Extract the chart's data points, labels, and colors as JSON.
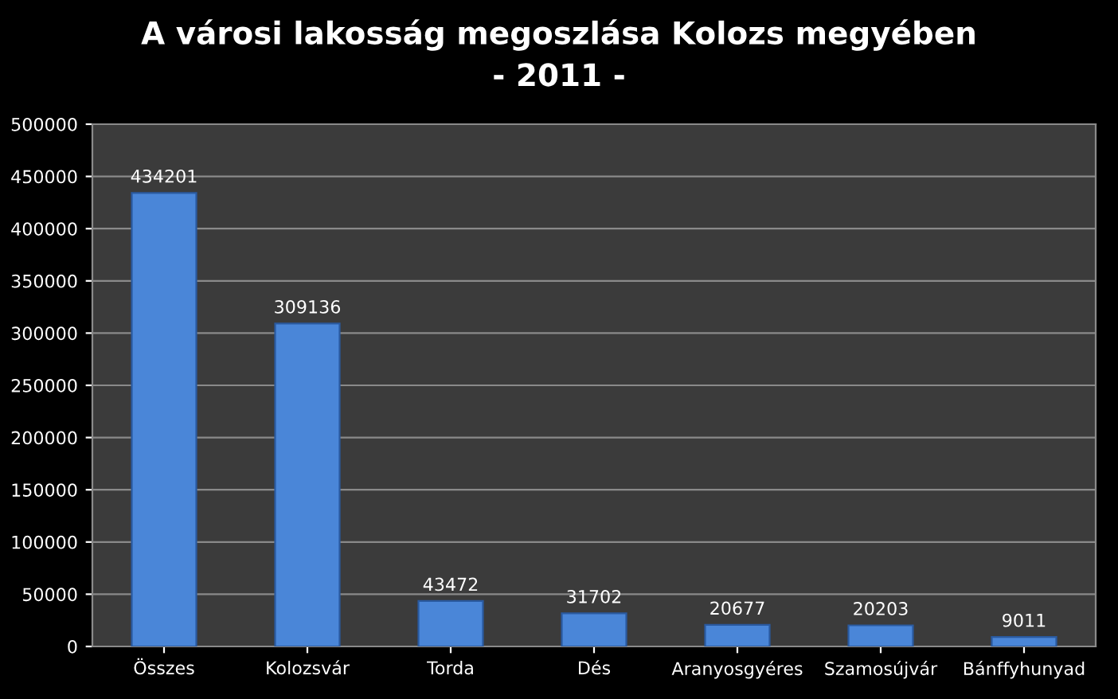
{
  "chart_data": {
    "type": "bar",
    "title": "A városi lakosság megoszlása Kolozs megyében\n- 2011 -",
    "categories": [
      "Összes",
      "Kolozsvár",
      "Torda",
      "Dés",
      "Aranyosgyéres",
      "Szamosújvár",
      "Bánffyhunyad"
    ],
    "values": [
      434201,
      309136,
      43472,
      31702,
      20677,
      20203,
      9011
    ],
    "color": "#4a86d8",
    "ylim": [
      0,
      500000
    ],
    "yticks": [
      0,
      50000,
      100000,
      150000,
      200000,
      250000,
      300000,
      350000,
      400000,
      450000,
      500000
    ],
    "grid": "y",
    "data_labels": true
  }
}
